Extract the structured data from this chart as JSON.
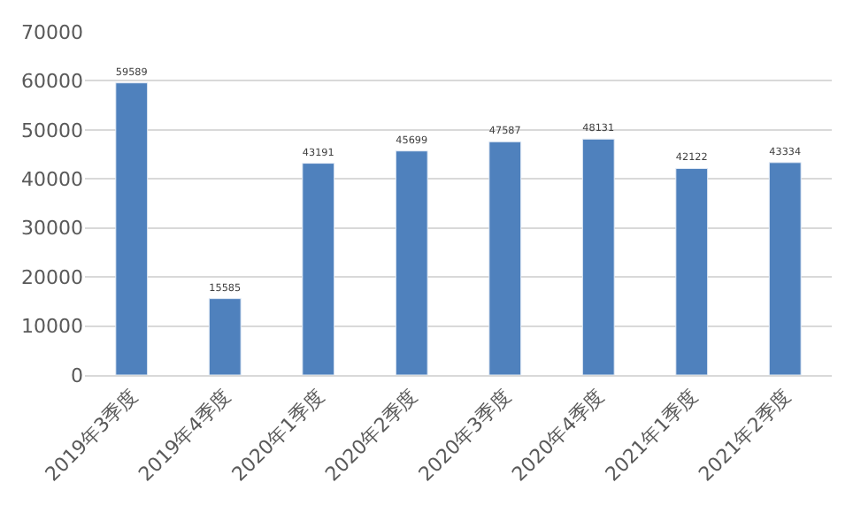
{
  "chart_data": {
    "type": "bar",
    "categories": [
      "2019年3季度",
      "2019年4季度",
      "2020年1季度",
      "2020年2季度",
      "2020年3季度",
      "2020年4季度",
      "2021年1季度",
      "2021年2季度"
    ],
    "values": [
      59589,
      15585,
      43191,
      45699,
      47587,
      48131,
      42122,
      43334
    ],
    "color": "#4f81bd",
    "ylim": [
      0,
      70000
    ],
    "yticks": [
      0,
      10000,
      20000,
      30000,
      40000,
      50000,
      60000,
      70000
    ],
    "grid": "y",
    "data_labels": true
  }
}
